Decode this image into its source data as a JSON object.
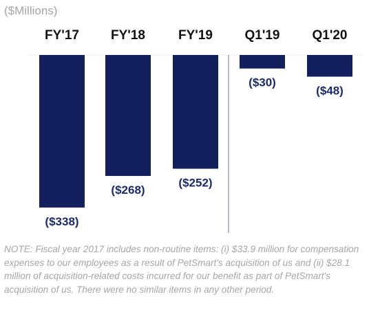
{
  "chart_data": {
    "type": "bar",
    "unit_label": "($Millions)",
    "categories": [
      "FY'17",
      "FY'18",
      "FY'19",
      "Q1'19",
      "Q1'20"
    ],
    "values": [
      -338,
      -268,
      -252,
      -30,
      -48
    ],
    "value_labels": [
      "($338)",
      "($268)",
      "($252)",
      "($30)",
      "($48)"
    ],
    "ylim": [
      -338,
      0
    ],
    "bar_color": "#14205e",
    "divider_color": "#9aa6c8",
    "grid": false
  },
  "note": "NOTE: Fiscal year 2017 includes non-routine items: (i) $33.9 million for compensation expenses to our employees as a result of PetSmart's acquisition of us and (ii) $28.1 million of acquisition-related costs incurred for our benefit as part of PetSmart's acquisition of us. There were no similar items in any other period."
}
